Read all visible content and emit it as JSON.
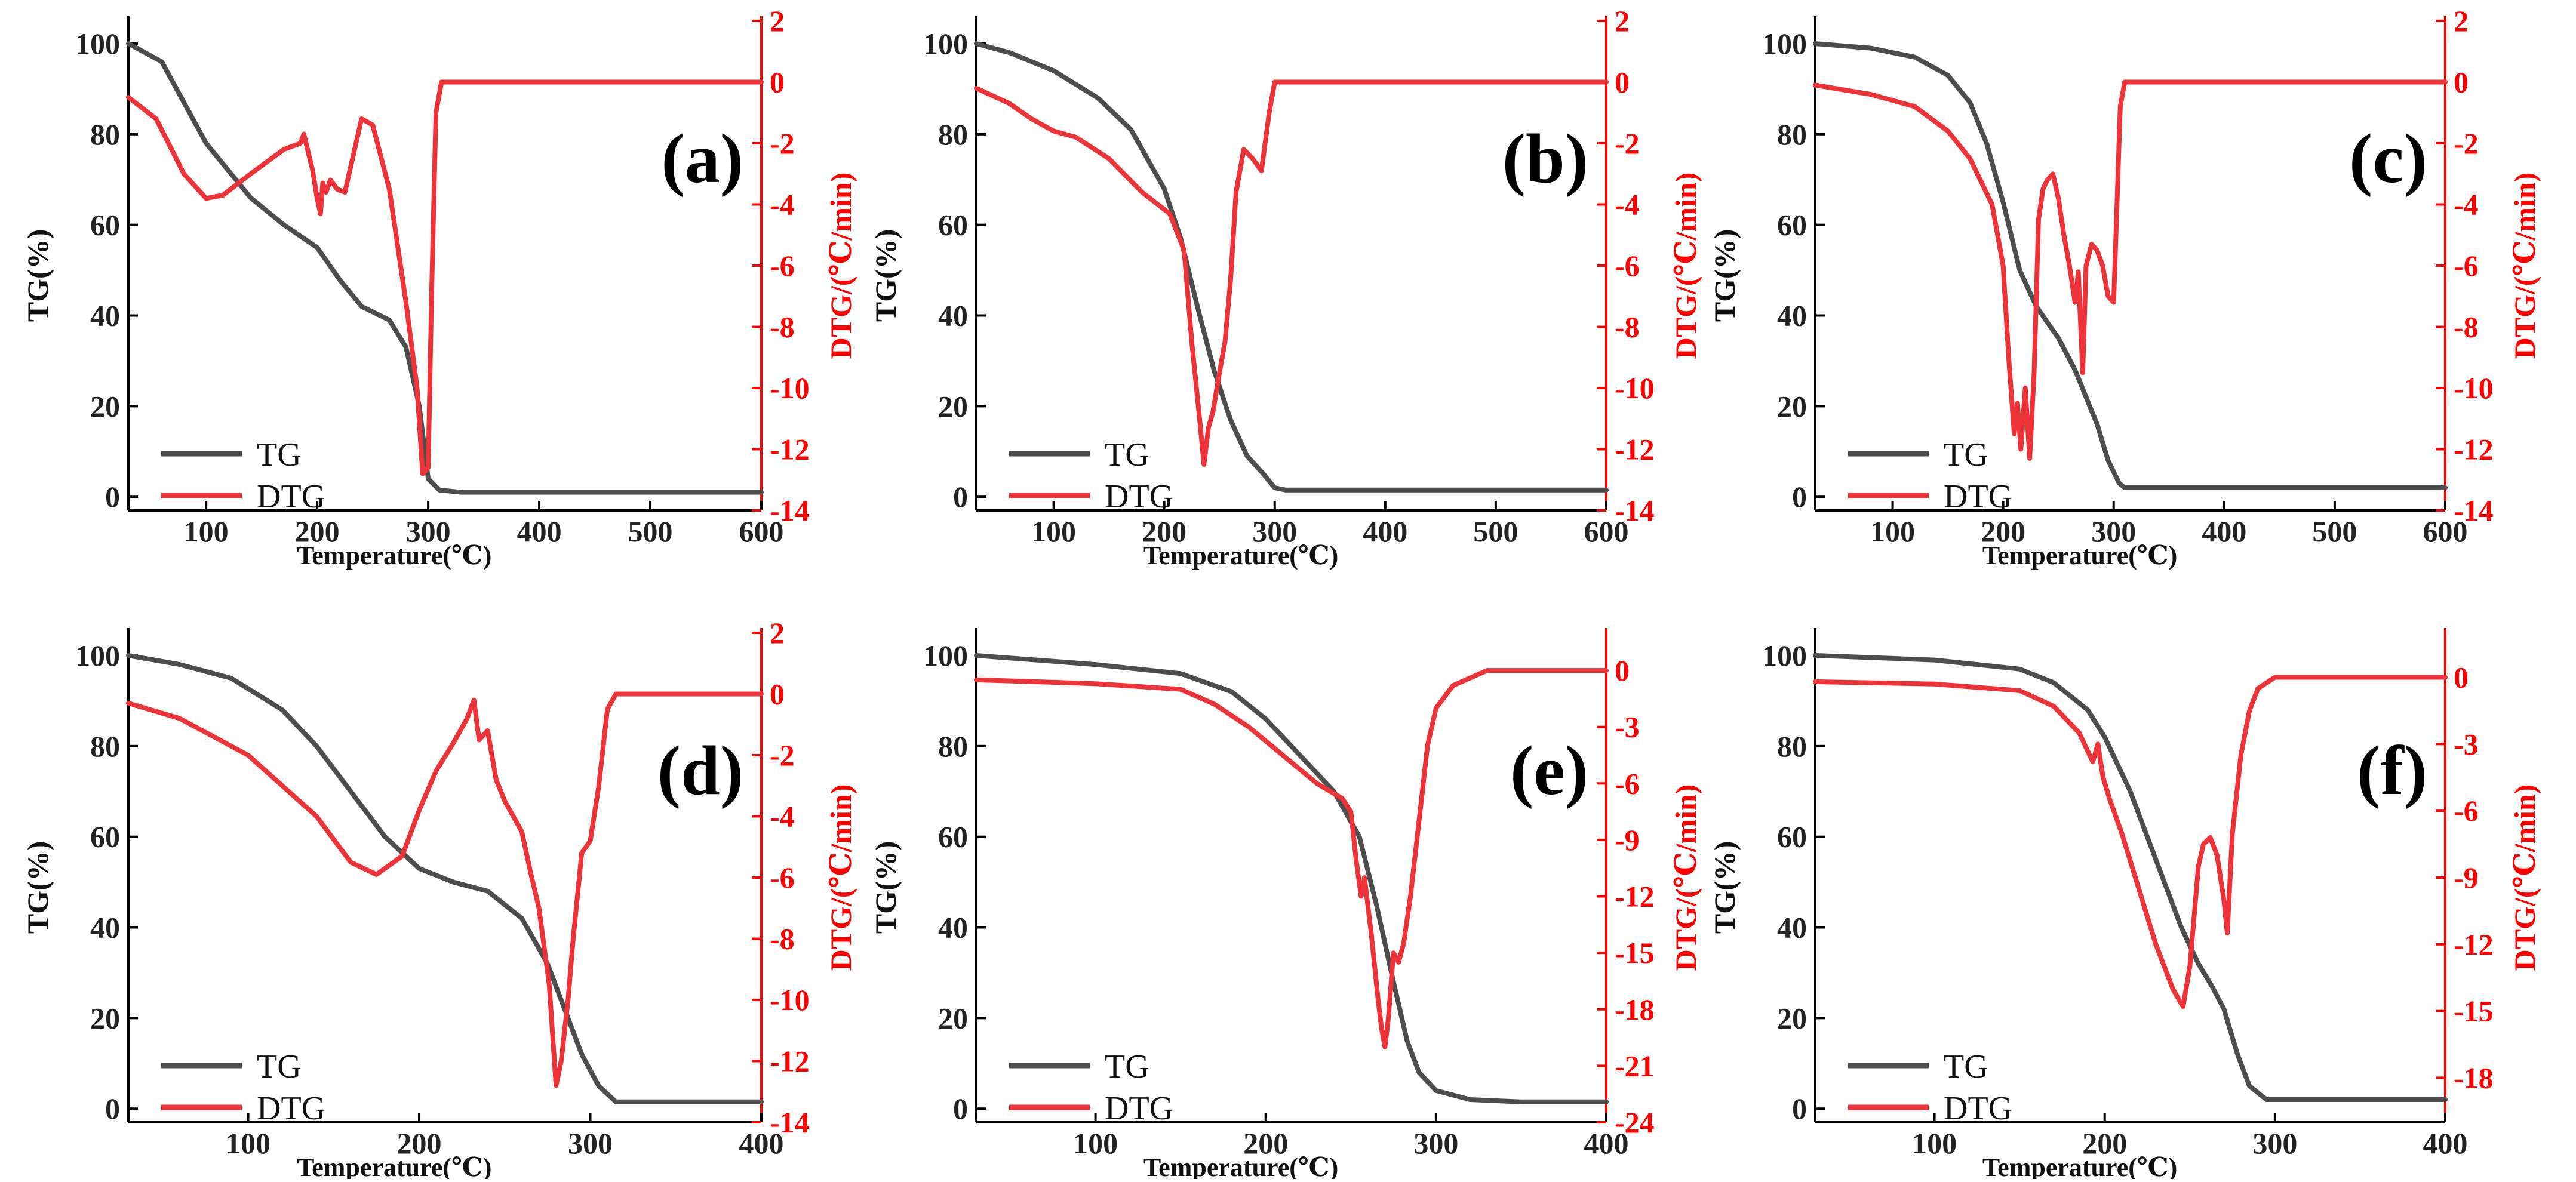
{
  "chart_data": [
    {
      "type": "line",
      "panel_label": "(a)",
      "xlabel": "Temperature(℃)",
      "ylabel": "TG(%)",
      "y2label": "DTG/(℃/min)",
      "xlim": [
        30,
        600
      ],
      "ylim": [
        -3,
        105
      ],
      "y2lim": [
        -14,
        2
      ],
      "xticks": [
        "100",
        "200",
        "300",
        "400",
        "500",
        "600"
      ],
      "yticks": [
        "0",
        "20",
        "40",
        "60",
        "80",
        "100"
      ],
      "y2ticks": [
        "2",
        "0",
        "-2",
        "-4",
        "-6",
        "-8",
        "-10",
        "-12",
        "-14"
      ],
      "legend": [
        "TG",
        "DTG"
      ],
      "series": [
        {
          "name": "TG",
          "axis": "left",
          "x": [
            30,
            60,
            100,
            140,
            170,
            200,
            220,
            240,
            265,
            280,
            292,
            300,
            310,
            330,
            400,
            500,
            600
          ],
          "y": [
            100,
            96,
            78,
            66,
            60,
            55,
            48,
            42,
            39,
            33,
            20,
            4,
            1.5,
            1,
            1,
            1,
            1
          ]
        },
        {
          "name": "DTG",
          "axis": "right",
          "x": [
            30,
            55,
            80,
            100,
            115,
            140,
            170,
            185,
            188,
            192,
            196,
            200,
            203,
            205,
            208,
            212,
            218,
            225,
            230,
            240,
            250,
            265,
            280,
            290,
            295,
            300,
            303,
            307,
            312,
            320,
            400,
            600
          ],
          "y": [
            -0.5,
            -1.2,
            -3,
            -3.8,
            -3.7,
            -3,
            -2.2,
            -2,
            -1.7,
            -2.3,
            -2.9,
            -3.8,
            -4.3,
            -3.3,
            -3.6,
            -3.2,
            -3.5,
            -3.6,
            -2.8,
            -1.2,
            -1.4,
            -3.5,
            -7.2,
            -10,
            -12.8,
            -12.6,
            -7,
            -1,
            0,
            0,
            0,
            0
          ]
        }
      ]
    },
    {
      "type": "line",
      "panel_label": "(b)",
      "xlabel": "Temperature(℃)",
      "ylabel": "TG(%)",
      "y2label": "DTG/(℃/min)",
      "xlim": [
        30,
        600
      ],
      "ylim": [
        -3,
        105
      ],
      "y2lim": [
        -14,
        2
      ],
      "xticks": [
        "100",
        "200",
        "300",
        "400",
        "500",
        "600"
      ],
      "yticks": [
        "0",
        "20",
        "40",
        "60",
        "80",
        "100"
      ],
      "y2ticks": [
        "2",
        "0",
        "-2",
        "-4",
        "-6",
        "-8",
        "-10",
        "-12",
        "-14"
      ],
      "legend": [
        "TG",
        "DTG"
      ],
      "series": [
        {
          "name": "TG",
          "axis": "left",
          "x": [
            30,
            60,
            100,
            140,
            170,
            200,
            215,
            230,
            245,
            260,
            275,
            290,
            300,
            310,
            400,
            500,
            600
          ],
          "y": [
            100,
            98,
            94,
            88,
            81,
            68,
            57,
            42,
            28,
            17,
            9,
            5,
            2,
            1.5,
            1.5,
            1.5,
            1.5
          ]
        },
        {
          "name": "DTG",
          "axis": "right",
          "x": [
            30,
            60,
            80,
            100,
            120,
            150,
            180,
            205,
            218,
            225,
            232,
            236,
            240,
            244,
            250,
            255,
            260,
            265,
            272,
            280,
            288,
            295,
            300,
            305,
            320,
            600
          ],
          "y": [
            -0.2,
            -0.7,
            -1.2,
            -1.6,
            -1.8,
            -2.5,
            -3.6,
            -4.3,
            -5.5,
            -8.5,
            -11,
            -12.5,
            -11.3,
            -10.8,
            -9.5,
            -8.5,
            -6.5,
            -3.6,
            -2.2,
            -2.5,
            -2.9,
            -1,
            0,
            0,
            0,
            0
          ]
        }
      ]
    },
    {
      "type": "line",
      "panel_label": "(c)",
      "xlabel": "Temperature(℃)",
      "ylabel": "TG(%)",
      "y2label": "DTG/(℃/min)",
      "xlim": [
        30,
        600
      ],
      "ylim": [
        -3,
        105
      ],
      "y2lim": [
        -14,
        2
      ],
      "xticks": [
        "100",
        "200",
        "300",
        "400",
        "500",
        "600"
      ],
      "yticks": [
        "0",
        "20",
        "40",
        "60",
        "80",
        "100"
      ],
      "y2ticks": [
        "2",
        "0",
        "-2",
        "-4",
        "-6",
        "-8",
        "-10",
        "-12",
        "-14"
      ],
      "legend": [
        "TG",
        "DTG"
      ],
      "series": [
        {
          "name": "TG",
          "axis": "left",
          "x": [
            30,
            80,
            120,
            150,
            170,
            185,
            200,
            215,
            230,
            250,
            265,
            275,
            285,
            295,
            305,
            310,
            320,
            400,
            600
          ],
          "y": [
            100,
            99,
            97,
            93,
            87,
            78,
            65,
            50,
            42,
            35,
            28,
            22,
            16,
            8,
            3,
            2,
            2,
            2,
            2
          ]
        },
        {
          "name": "DTG",
          "axis": "right",
          "x": [
            30,
            80,
            120,
            150,
            170,
            190,
            200,
            205,
            210,
            213,
            216,
            220,
            224,
            228,
            232,
            236,
            240,
            245,
            250,
            255,
            260,
            265,
            268,
            272,
            275,
            280,
            285,
            290,
            295,
            300,
            303,
            306,
            310,
            320,
            600
          ],
          "y": [
            -0.1,
            -0.4,
            -0.8,
            -1.6,
            -2.5,
            -4,
            -6,
            -9,
            -11.5,
            -10.5,
            -12,
            -10,
            -12.3,
            -9.5,
            -4.5,
            -3.5,
            -3.2,
            -3,
            -3.8,
            -5,
            -6,
            -7.2,
            -6.2,
            -9.5,
            -6,
            -5.3,
            -5.5,
            -6,
            -7,
            -7.2,
            -4,
            -0.8,
            0,
            0,
            0
          ]
        }
      ]
    },
    {
      "type": "line",
      "panel_label": "(d)",
      "xlabel": "Temperature(℃)",
      "ylabel": "TG(%)",
      "y2label": "DTG/(℃/min)",
      "xlim": [
        30,
        400
      ],
      "ylim": [
        -3,
        105
      ],
      "y2lim": [
        -14,
        2
      ],
      "xticks": [
        "100",
        "200",
        "300",
        "400"
      ],
      "yticks": [
        "0",
        "20",
        "40",
        "60",
        "80",
        "100"
      ],
      "y2ticks": [
        "2",
        "0",
        "-2",
        "-4",
        "-6",
        "-8",
        "-10",
        "-12",
        "-14"
      ],
      "legend": [
        "TG",
        "DTG"
      ],
      "series": [
        {
          "name": "TG",
          "axis": "left",
          "x": [
            30,
            60,
            90,
            120,
            140,
            160,
            180,
            200,
            220,
            240,
            260,
            275,
            285,
            295,
            305,
            315,
            330,
            400
          ],
          "y": [
            100,
            98,
            95,
            88,
            80,
            70,
            60,
            53,
            50,
            48,
            42,
            32,
            22,
            12,
            5,
            1.5,
            1.5,
            1.5
          ]
        },
        {
          "name": "DTG",
          "axis": "right",
          "x": [
            30,
            60,
            100,
            120,
            140,
            160,
            175,
            190,
            200,
            210,
            220,
            228,
            232,
            235,
            240,
            245,
            250,
            255,
            260,
            265,
            270,
            276,
            280,
            283,
            287,
            290,
            295,
            300,
            305,
            310,
            315,
            320,
            400
          ],
          "y": [
            -0.3,
            -0.8,
            -2,
            -3,
            -4,
            -5.5,
            -5.9,
            -5.3,
            -3.8,
            -2.5,
            -1.6,
            -0.8,
            -0.2,
            -1.5,
            -1.2,
            -2.8,
            -3.5,
            -4,
            -4.5,
            -5.8,
            -7,
            -9.5,
            -12.8,
            -12,
            -10,
            -8,
            -5.2,
            -4.8,
            -3,
            -0.5,
            0,
            0,
            0
          ]
        }
      ]
    },
    {
      "type": "line",
      "panel_label": "(e)",
      "xlabel": "Temperature(℃)",
      "ylabel": "TG(%)",
      "y2label": "DTG/(℃/min)",
      "xlim": [
        30,
        400
      ],
      "ylim": [
        -3,
        105
      ],
      "y2lim": [
        -24,
        2
      ],
      "xticks": [
        "100",
        "200",
        "300",
        "400"
      ],
      "yticks": [
        "0",
        "20",
        "40",
        "60",
        "80",
        "100"
      ],
      "y2ticks": [
        "0",
        "-3",
        "-6",
        "-9",
        "-12",
        "-15",
        "-18",
        "-21",
        "-24"
      ],
      "legend": [
        "TG",
        "DTG"
      ],
      "series": [
        {
          "name": "TG",
          "axis": "left",
          "x": [
            30,
            100,
            150,
            180,
            200,
            220,
            240,
            255,
            265,
            275,
            283,
            290,
            300,
            320,
            350,
            400
          ],
          "y": [
            100,
            98,
            96,
            92,
            86,
            78,
            70,
            60,
            45,
            28,
            15,
            8,
            4,
            2,
            1.5,
            1.5
          ]
        },
        {
          "name": "DTG",
          "axis": "right",
          "x": [
            30,
            100,
            150,
            170,
            190,
            210,
            230,
            245,
            250,
            253,
            256,
            258,
            262,
            266,
            268,
            270,
            272,
            275,
            278,
            281,
            285,
            290,
            295,
            300,
            310,
            330,
            400
          ],
          "y": [
            -0.5,
            -0.7,
            -1,
            -1.8,
            -3,
            -4.5,
            -6,
            -6.8,
            -7.5,
            -10,
            -12,
            -11,
            -14,
            -17.5,
            -19,
            -20,
            -18.5,
            -15,
            -15.5,
            -14.5,
            -12,
            -8,
            -4,
            -2,
            -0.8,
            0,
            0
          ]
        }
      ]
    },
    {
      "type": "line",
      "panel_label": "(f)",
      "xlabel": "Temperature(℃)",
      "ylabel": "TG(%)",
      "y2label": "DTG/(℃/min)",
      "xlim": [
        30,
        400
      ],
      "ylim": [
        -3,
        105
      ],
      "y2lim": [
        -20,
        2
      ],
      "xticks": [
        "100",
        "200",
        "300",
        "400"
      ],
      "yticks": [
        "0",
        "20",
        "40",
        "60",
        "80",
        "100"
      ],
      "y2ticks": [
        "0",
        "-3",
        "-6",
        "-9",
        "-12",
        "-15",
        "-18"
      ],
      "legend": [
        "TG",
        "DTG"
      ],
      "series": [
        {
          "name": "TG",
          "axis": "left",
          "x": [
            30,
            100,
            150,
            170,
            190,
            200,
            215,
            230,
            245,
            255,
            263,
            270,
            278,
            285,
            295,
            320,
            400
          ],
          "y": [
            100,
            99,
            97,
            94,
            88,
            82,
            70,
            55,
            40,
            32,
            27,
            22,
            12,
            5,
            2,
            2,
            2
          ]
        },
        {
          "name": "DTG",
          "axis": "right",
          "x": [
            30,
            100,
            150,
            170,
            185,
            193,
            196,
            199,
            203,
            210,
            220,
            230,
            240,
            246,
            250,
            255,
            258,
            262,
            266,
            270,
            272,
            275,
            280,
            285,
            290,
            300,
            320,
            400
          ],
          "y": [
            -0.2,
            -0.3,
            -0.6,
            -1.3,
            -2.5,
            -3.8,
            -3,
            -4.5,
            -5.5,
            -7,
            -9.5,
            -12,
            -14,
            -14.8,
            -13,
            -8.5,
            -7.5,
            -7.2,
            -8,
            -10,
            -11.5,
            -7,
            -3.5,
            -1.5,
            -0.5,
            0,
            0,
            0
          ]
        }
      ]
    }
  ],
  "colors": {
    "tg": "#4d4d4d",
    "dtg": "#ee3338",
    "dtg_axis": "#ff0000",
    "axis": "#000000"
  }
}
